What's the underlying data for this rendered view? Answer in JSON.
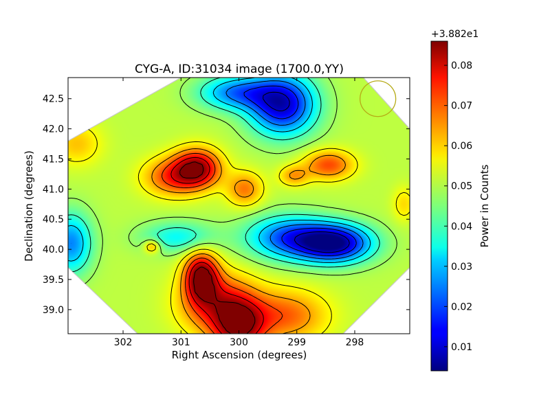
{
  "chart_data": {
    "type": "heatmap",
    "title": "CYG-A, ID:31034 image (1700.0,YY)",
    "xlabel": "Right Ascension (degrees)",
    "ylabel": "Declination (degrees)",
    "xlim": [
      302.95,
      297.05
    ],
    "ylim": [
      38.6,
      42.85
    ],
    "x_inverted": true,
    "grid": false,
    "x_ticks": [
      "302",
      "301",
      "300",
      "299",
      "298"
    ],
    "x_tick_values": [
      302,
      301,
      300,
      299,
      298
    ],
    "y_ticks": [
      "39.0",
      "39.5",
      "40.0",
      "40.5",
      "41.0",
      "41.5",
      "42.0",
      "42.5"
    ],
    "y_tick_values": [
      39.0,
      39.5,
      40.0,
      40.5,
      41.0,
      41.5,
      42.0,
      42.5
    ],
    "footprint": [
      [
        301.0,
        42.85
      ],
      [
        297.85,
        42.85
      ],
      [
        297.05,
        42.0
      ],
      [
        297.05,
        39.7
      ],
      [
        298.2,
        38.6
      ],
      [
        301.75,
        38.6
      ],
      [
        302.95,
        39.7
      ],
      [
        302.95,
        41.8
      ]
    ],
    "beam_marker": {
      "ra": 297.6,
      "dec": 42.5,
      "color": "#b5aa16"
    },
    "colormap": "jet",
    "colorbar": {
      "label": "Power in Counts",
      "offset_label": "+3.882e1",
      "range": [
        0.004,
        0.086
      ],
      "ticks": [
        "0.01",
        "0.02",
        "0.03",
        "0.04",
        "0.05",
        "0.06",
        "0.07",
        "0.08"
      ],
      "tick_values": [
        0.01,
        0.02,
        0.03,
        0.04,
        0.05,
        0.06,
        0.07,
        0.08
      ]
    },
    "background_level": 0.05,
    "features": [
      {
        "ra": 300.72,
        "dec": 41.35,
        "peak": 0.083,
        "sigma_ra": 0.28,
        "sigma_dec": 0.22
      },
      {
        "ra": 301.15,
        "dec": 41.2,
        "peak": 0.07,
        "sigma_ra": 0.35,
        "sigma_dec": 0.22
      },
      {
        "ra": 300.65,
        "dec": 39.55,
        "peak": 0.086,
        "sigma_ra": 0.2,
        "sigma_dec": 0.28
      },
      {
        "ra": 300.35,
        "dec": 39.1,
        "peak": 0.075,
        "sigma_ra": 0.45,
        "sigma_dec": 0.35
      },
      {
        "ra": 300.0,
        "dec": 38.7,
        "peak": 0.08,
        "sigma_ra": 0.3,
        "sigma_dec": 0.3
      },
      {
        "ra": 299.2,
        "dec": 38.9,
        "peak": 0.068,
        "sigma_ra": 0.5,
        "sigma_dec": 0.3
      },
      {
        "ra": 299.9,
        "dec": 41.0,
        "peak": 0.066,
        "sigma_ra": 0.22,
        "sigma_dec": 0.2
      },
      {
        "ra": 298.45,
        "dec": 41.4,
        "peak": 0.07,
        "sigma_ra": 0.3,
        "sigma_dec": 0.17
      },
      {
        "ra": 299.05,
        "dec": 41.22,
        "peak": 0.063,
        "sigma_ra": 0.18,
        "sigma_dec": 0.12
      },
      {
        "ra": 302.8,
        "dec": 41.75,
        "peak": 0.06,
        "sigma_ra": 0.3,
        "sigma_dec": 0.25
      },
      {
        "ra": 298.35,
        "dec": 40.1,
        "peak": 0.006,
        "sigma_ra": 0.45,
        "sigma_dec": 0.22
      },
      {
        "ra": 299.15,
        "dec": 40.2,
        "peak": 0.022,
        "sigma_ra": 0.5,
        "sigma_dec": 0.25
      },
      {
        "ra": 299.25,
        "dec": 42.4,
        "peak": 0.01,
        "sigma_ra": 0.4,
        "sigma_dec": 0.35
      },
      {
        "ra": 300.05,
        "dec": 42.6,
        "peak": 0.025,
        "sigma_ra": 0.45,
        "sigma_dec": 0.2
      },
      {
        "ra": 302.9,
        "dec": 40.1,
        "peak": 0.025,
        "sigma_ra": 0.25,
        "sigma_dec": 0.35
      },
      {
        "ra": 301.05,
        "dec": 40.2,
        "peak": 0.035,
        "sigma_ra": 0.45,
        "sigma_dec": 0.18
      },
      {
        "ra": 301.5,
        "dec": 40.05,
        "peak": 0.065,
        "sigma_ra": 0.1,
        "sigma_dec": 0.08
      },
      {
        "ra": 297.15,
        "dec": 40.75,
        "peak": 0.058,
        "sigma_ra": 0.14,
        "sigma_dec": 0.2
      }
    ]
  }
}
